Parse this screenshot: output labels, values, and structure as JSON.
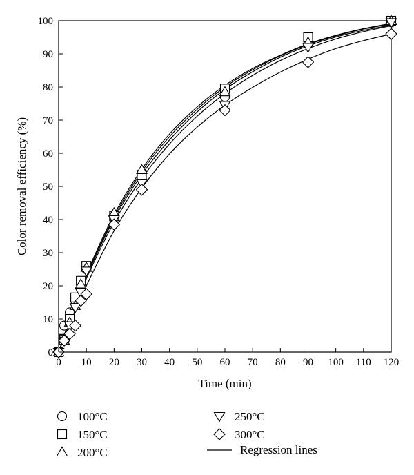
{
  "chart_data": {
    "type": "scatter",
    "xlabel": "Time (min)",
    "ylabel": "Color removal efficiency (%)",
    "xlim": [
      0,
      120
    ],
    "ylim": [
      0,
      100
    ],
    "xticks": [
      0,
      10,
      20,
      30,
      40,
      50,
      60,
      70,
      80,
      90,
      100,
      110,
      120
    ],
    "yticks": [
      0,
      10,
      20,
      30,
      40,
      50,
      60,
      70,
      80,
      90,
      100
    ],
    "grid": false,
    "legend_position": "below",
    "series": [
      {
        "name": "100°C",
        "marker": "circle",
        "x": [
          0,
          2,
          4,
          6,
          8,
          10,
          20,
          30,
          60,
          90,
          120
        ],
        "y": [
          0,
          8,
          12,
          15.5,
          19,
          25,
          40.5,
          53,
          77,
          93,
          99.5
        ]
      },
      {
        "name": "150°C",
        "marker": "square",
        "x": [
          0,
          2,
          4,
          6,
          8,
          10,
          20,
          30,
          60,
          90,
          120
        ],
        "y": [
          0,
          4,
          10,
          16.5,
          21.5,
          26,
          41,
          53.5,
          79.5,
          95,
          100
        ]
      },
      {
        "name": "200°C",
        "marker": "triangle-up",
        "x": [
          0,
          2,
          4,
          6,
          8,
          10,
          20,
          30,
          60,
          90,
          120
        ],
        "y": [
          0,
          3.5,
          9,
          14,
          20.5,
          25.5,
          42,
          55,
          78.5,
          93.5,
          100
        ]
      },
      {
        "name": "250°C",
        "marker": "triangle-down",
        "x": [
          0,
          2,
          4,
          6,
          8,
          10,
          20,
          30,
          60,
          90,
          120
        ],
        "y": [
          0,
          4,
          8,
          13.5,
          18,
          24.5,
          40,
          51,
          74.5,
          92,
          99.5
        ]
      },
      {
        "name": "300°C",
        "marker": "diamond",
        "x": [
          0,
          2,
          4,
          6,
          8,
          10,
          20,
          30,
          60,
          90,
          120
        ],
        "y": [
          0,
          3.5,
          5.5,
          8,
          15.5,
          17.5,
          38.5,
          49,
          73,
          87.5,
          96
        ]
      }
    ],
    "regression_label": "Regression lines",
    "regression_curves": [
      {
        "x": [
          0,
          5,
          10,
          20,
          30,
          40,
          50,
          60,
          70,
          80,
          90,
          100,
          110,
          120
        ],
        "y": [
          0,
          12.0,
          22.8,
          40.2,
          53.6,
          64.0,
          72.5,
          79.3,
          84.6,
          89.0,
          92.4,
          95.1,
          97.1,
          98.7
        ]
      },
      {
        "x": [
          0,
          5,
          10,
          20,
          30,
          40,
          50,
          60,
          70,
          80,
          90,
          100,
          110,
          120
        ],
        "y": [
          0,
          12.5,
          23.5,
          41.5,
          55.2,
          65.8,
          74.0,
          80.5,
          85.6,
          89.6,
          93.0,
          95.6,
          97.6,
          99.2
        ]
      },
      {
        "x": [
          0,
          5,
          10,
          20,
          30,
          40,
          50,
          60,
          70,
          80,
          90,
          100,
          110,
          120
        ],
        "y": [
          0,
          12.2,
          23.0,
          40.8,
          54.5,
          65.0,
          73.3,
          80.0,
          85.2,
          89.4,
          92.8,
          95.4,
          97.5,
          99.0
        ]
      },
      {
        "x": [
          0,
          5,
          10,
          20,
          30,
          40,
          50,
          60,
          70,
          80,
          90,
          100,
          110,
          120
        ],
        "y": [
          0,
          11.8,
          22.2,
          39.2,
          52.4,
          62.8,
          71.2,
          78.0,
          83.5,
          88.0,
          91.6,
          94.5,
          96.7,
          98.5
        ]
      },
      {
        "x": [
          0,
          5,
          10,
          20,
          30,
          40,
          50,
          60,
          70,
          80,
          90,
          100,
          110,
          120
        ],
        "y": [
          0,
          10.5,
          20.0,
          36.6,
          49.5,
          59.8,
          67.9,
          74.5,
          79.9,
          84.5,
          88.4,
          91.6,
          94.0,
          96.0
        ]
      }
    ]
  }
}
